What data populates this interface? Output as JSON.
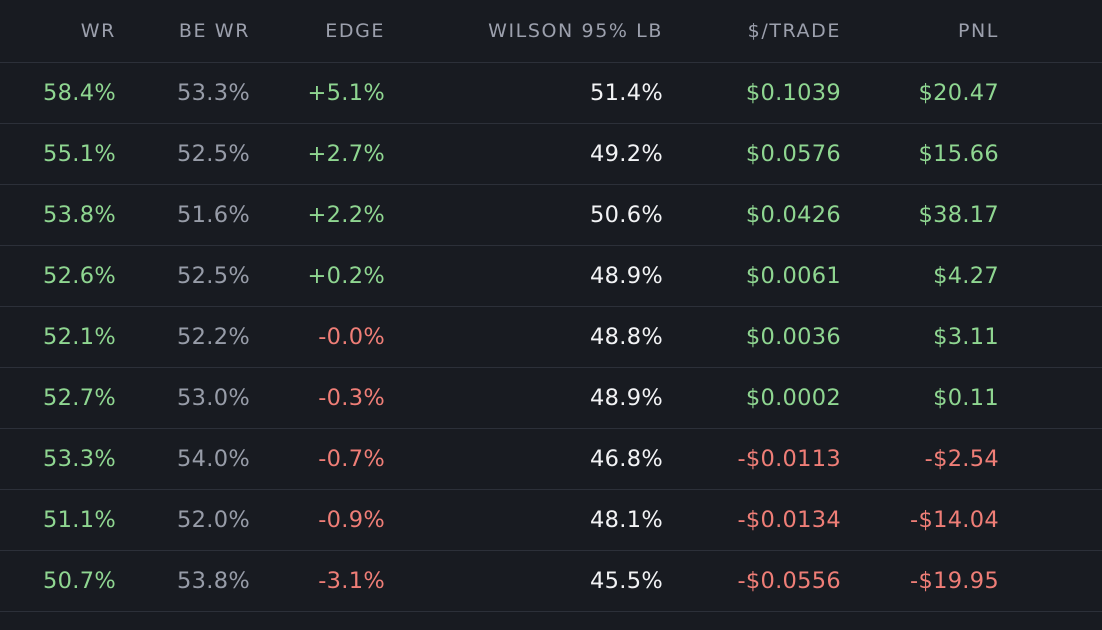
{
  "colors": {
    "background": "#181b21",
    "divider": "#2c3039",
    "header_text": "#9ca0ad",
    "positive": "#8fd691",
    "negative": "#ef7e77",
    "muted": "#979ca8",
    "neutral": "#f2f3f5"
  },
  "columns": [
    "WR",
    "BE WR",
    "EDGE",
    "WILSON 95% LB",
    "$/TRADE",
    "PNL"
  ],
  "rows": [
    {
      "wr": "58.4%",
      "be_wr": "53.3%",
      "edge": "+5.1%",
      "edge_sign": "pos",
      "wilson": "51.4%",
      "per_trade": "$0.1039",
      "per_trade_sign": "pos",
      "pnl": "$20.47",
      "pnl_sign": "pos"
    },
    {
      "wr": "55.1%",
      "be_wr": "52.5%",
      "edge": "+2.7%",
      "edge_sign": "pos",
      "wilson": "49.2%",
      "per_trade": "$0.0576",
      "per_trade_sign": "pos",
      "pnl": "$15.66",
      "pnl_sign": "pos"
    },
    {
      "wr": "53.8%",
      "be_wr": "51.6%",
      "edge": "+2.2%",
      "edge_sign": "pos",
      "wilson": "50.6%",
      "per_trade": "$0.0426",
      "per_trade_sign": "pos",
      "pnl": "$38.17",
      "pnl_sign": "pos"
    },
    {
      "wr": "52.6%",
      "be_wr": "52.5%",
      "edge": "+0.2%",
      "edge_sign": "pos",
      "wilson": "48.9%",
      "per_trade": "$0.0061",
      "per_trade_sign": "pos",
      "pnl": "$4.27",
      "pnl_sign": "pos"
    },
    {
      "wr": "52.1%",
      "be_wr": "52.2%",
      "edge": "-0.0%",
      "edge_sign": "neg",
      "wilson": "48.8%",
      "per_trade": "$0.0036",
      "per_trade_sign": "pos",
      "pnl": "$3.11",
      "pnl_sign": "pos"
    },
    {
      "wr": "52.7%",
      "be_wr": "53.0%",
      "edge": "-0.3%",
      "edge_sign": "neg",
      "wilson": "48.9%",
      "per_trade": "$0.0002",
      "per_trade_sign": "pos",
      "pnl": "$0.11",
      "pnl_sign": "pos"
    },
    {
      "wr": "53.3%",
      "be_wr": "54.0%",
      "edge": "-0.7%",
      "edge_sign": "neg",
      "wilson": "46.8%",
      "per_trade": "-$0.0113",
      "per_trade_sign": "neg",
      "pnl": "-$2.54",
      "pnl_sign": "neg"
    },
    {
      "wr": "51.1%",
      "be_wr": "52.0%",
      "edge": "-0.9%",
      "edge_sign": "neg",
      "wilson": "48.1%",
      "per_trade": "-$0.0134",
      "per_trade_sign": "neg",
      "pnl": "-$14.04",
      "pnl_sign": "neg"
    },
    {
      "wr": "50.7%",
      "be_wr": "53.8%",
      "edge": "-3.1%",
      "edge_sign": "neg",
      "wilson": "45.5%",
      "per_trade": "-$0.0556",
      "per_trade_sign": "neg",
      "pnl": "-$19.95",
      "pnl_sign": "neg"
    }
  ]
}
